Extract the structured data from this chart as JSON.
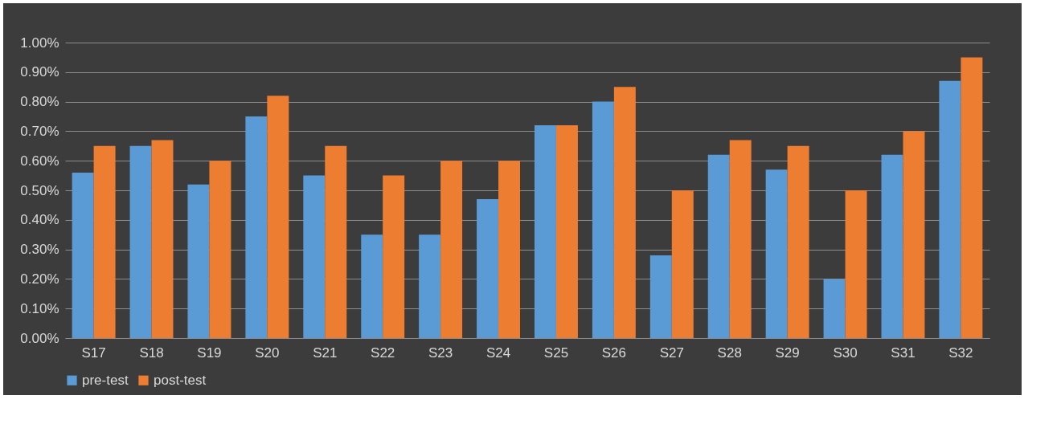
{
  "chart_data": {
    "type": "bar",
    "categories": [
      "S17",
      "S18",
      "S19",
      "S20",
      "S21",
      "S22",
      "S23",
      "S24",
      "S25",
      "S26",
      "S27",
      "S28",
      "S29",
      "S30",
      "S31",
      "S32"
    ],
    "series": [
      {
        "name": "pre-test",
        "color": "#5b9bd5",
        "values": [
          0.56,
          0.65,
          0.52,
          0.75,
          0.55,
          0.35,
          0.35,
          0.47,
          0.72,
          0.8,
          0.28,
          0.62,
          0.57,
          0.2,
          0.62,
          0.87
        ]
      },
      {
        "name": "post-test",
        "color": "#ed7d31",
        "values": [
          0.65,
          0.67,
          0.6,
          0.82,
          0.65,
          0.55,
          0.6,
          0.6,
          0.72,
          0.85,
          0.5,
          0.67,
          0.65,
          0.5,
          0.7,
          0.95
        ]
      }
    ],
    "ylim": [
      0,
      1
    ],
    "yticks": [
      {
        "value": 0,
        "label": "0.00%"
      },
      {
        "value": 0.1,
        "label": "0.10%"
      },
      {
        "value": 0.2,
        "label": "0.20%"
      },
      {
        "value": 0.3,
        "label": "0.30%"
      },
      {
        "value": 0.4,
        "label": "0.40%"
      },
      {
        "value": 0.5,
        "label": "0.50%"
      },
      {
        "value": 0.6,
        "label": "0.60%"
      },
      {
        "value": 0.7,
        "label": "0.70%"
      },
      {
        "value": 0.8,
        "label": "0.80%"
      },
      {
        "value": 0.9,
        "label": "0.90%"
      },
      {
        "value": 1,
        "label": "1.00%"
      }
    ],
    "grid": "y",
    "legend": "bottom"
  }
}
